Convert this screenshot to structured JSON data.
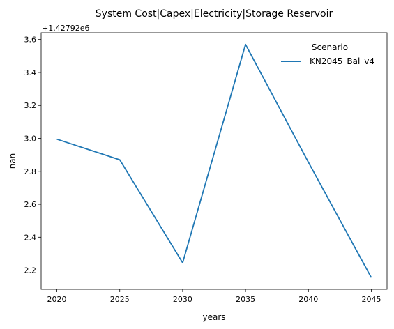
{
  "chart_data": {
    "type": "line",
    "title": "System Cost|Capex|Electricity|Storage Reservoir",
    "xlabel": "years",
    "ylabel": "nan",
    "y_offset_label": "+1.42792e6",
    "x": [
      2020,
      2025,
      2030,
      2035,
      2040,
      2045
    ],
    "series": [
      {
        "name": "KN2045_Bal_v4",
        "color": "#1f77b4",
        "values": [
          2.995,
          2.87,
          2.245,
          3.57,
          2.855,
          2.155
        ]
      }
    ],
    "xticks": [
      "2020",
      "2025",
      "2030",
      "2035",
      "2040",
      "2045"
    ],
    "yticks": [
      "2.2",
      "2.4",
      "2.6",
      "2.8",
      "3.0",
      "3.2",
      "3.4",
      "3.6"
    ],
    "xlim": [
      2018.75,
      2046.25
    ],
    "ylim": [
      2.084,
      3.641
    ],
    "legend": {
      "title": "Scenario",
      "position": "top-right"
    },
    "grid": false
  }
}
